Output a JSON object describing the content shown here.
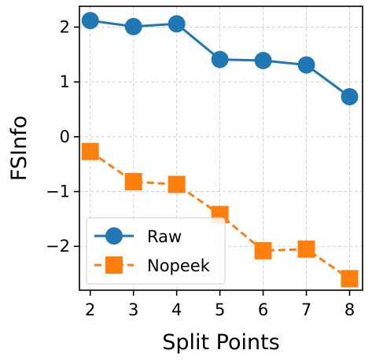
{
  "chart_data": {
    "type": "line",
    "xlabel": "Split Points",
    "ylabel": "FSInfo",
    "x": [
      2,
      3,
      4,
      5,
      6,
      7,
      8
    ],
    "xticks": [
      2,
      3,
      4,
      5,
      6,
      7,
      8
    ],
    "yticks": [
      2,
      1,
      0,
      -1,
      -2
    ],
    "ytick_labels": [
      "2",
      "1",
      "0",
      "−1",
      "−2"
    ],
    "xlim": [
      1.75,
      8.3
    ],
    "ylim": [
      -2.8,
      2.38
    ],
    "grid": true,
    "legend_position": "lower-left",
    "series": [
      {
        "name": "Raw",
        "values": [
          2.12,
          2.01,
          2.06,
          1.41,
          1.39,
          1.31,
          0.73
        ],
        "color": "#1f77b4",
        "line_style": "solid",
        "marker": "circle"
      },
      {
        "name": "Nopeek",
        "values": [
          -0.27,
          -0.82,
          -0.87,
          -1.42,
          -2.08,
          -2.05,
          -2.59
        ],
        "color": "#ff7f0e",
        "line_style": "dashed",
        "marker": "square"
      }
    ]
  }
}
